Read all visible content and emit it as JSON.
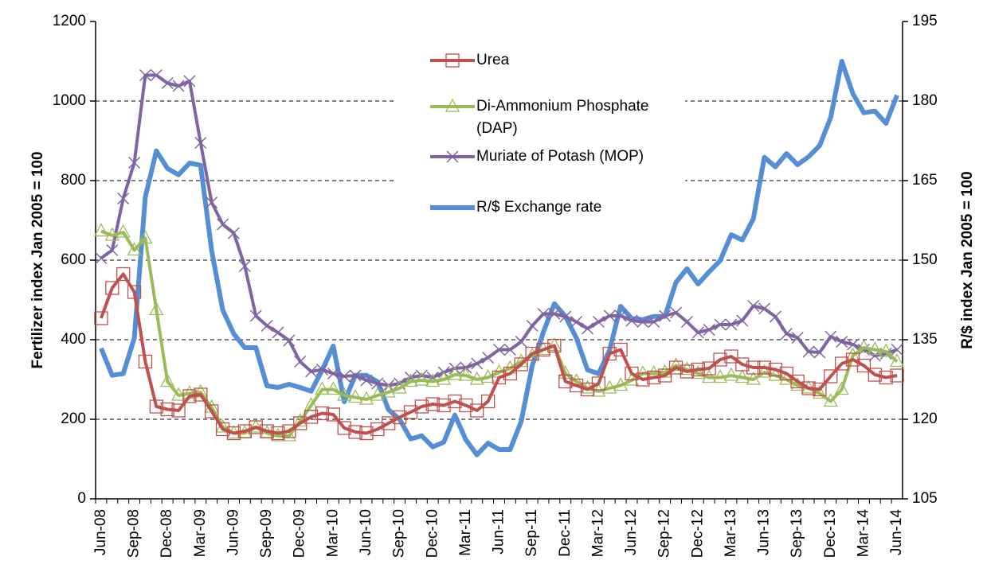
{
  "chart_data": {
    "type": "line",
    "categories": [
      "Jun-08",
      null,
      null,
      "Sep-08",
      null,
      null,
      "Dec-08",
      null,
      null,
      "Mar-09",
      null,
      null,
      "Jun-09",
      null,
      null,
      "Sep-09",
      null,
      null,
      "Dec-09",
      null,
      null,
      "Mar-10",
      null,
      null,
      "Jun-10",
      null,
      null,
      "Sep-10",
      null,
      null,
      "Dec-10",
      null,
      null,
      "Mar-11",
      null,
      null,
      "Jun-11",
      null,
      null,
      "Sep-11",
      null,
      null,
      "Dec-11",
      null,
      null,
      "Mar-12",
      null,
      null,
      "Jun-12",
      null,
      null,
      "Sep-12",
      null,
      null,
      "Dec-12",
      null,
      null,
      "Mar-13",
      null,
      null,
      "Jun-13",
      null,
      null,
      "Sep-13",
      null,
      null,
      "Dec-13",
      null,
      null,
      "Mar-14",
      null,
      null,
      "Jun-14"
    ],
    "series": [
      {
        "name": "Urea",
        "color": "#c0504d",
        "marker": "square",
        "values": [
          454,
          530,
          565,
          520,
          345,
          232,
          225,
          222,
          258,
          262,
          220,
          175,
          165,
          170,
          180,
          170,
          165,
          170,
          190,
          206,
          215,
          212,
          178,
          168,
          165,
          175,
          190,
          205,
          218,
          232,
          238,
          235,
          245,
          235,
          222,
          245,
          305,
          315,
          338,
          365,
          375,
          385,
          295,
          285,
          275,
          290,
          365,
          375,
          315,
          300,
          305,
          310,
          330,
          320,
          325,
          328,
          350,
          358,
          338,
          330,
          330,
          325,
          315,
          295,
          278,
          275,
          308,
          340,
          350,
          335,
          312,
          305,
          310
        ]
      },
      {
        "name": "Di-Ammonium Phosphate (DAP)",
        "color": "#9bbb59",
        "marker": "triangle",
        "values": [
          673,
          662,
          670,
          625,
          655,
          475,
          295,
          260,
          265,
          268,
          230,
          180,
          165,
          165,
          180,
          165,
          158,
          158,
          195,
          235,
          275,
          275,
          260,
          255,
          250,
          260,
          268,
          278,
          295,
          298,
          295,
          300,
          312,
          310,
          300,
          305,
          318,
          328,
          345,
          360,
          375,
          385,
          315,
          295,
          278,
          270,
          278,
          285,
          298,
          315,
          315,
          318,
          335,
          325,
          315,
          305,
          305,
          310,
          305,
          300,
          318,
          310,
          300,
          285,
          278,
          265,
          245,
          275,
          360,
          380,
          375,
          370,
          345
        ]
      },
      {
        "name": "Muriate of Potash (MOP)",
        "color": "#8064a2",
        "marker": "x",
        "values": [
          605,
          625,
          755,
          845,
          1065,
          1065,
          1045,
          1038,
          1050,
          895,
          745,
          690,
          668,
          585,
          460,
          435,
          418,
          398,
          345,
          320,
          325,
          315,
          308,
          310,
          298,
          290,
          285,
          290,
          305,
          310,
          305,
          318,
          328,
          330,
          340,
          355,
          375,
          375,
          395,
          435,
          465,
          465,
          458,
          445,
          428,
          445,
          460,
          460,
          448,
          445,
          445,
          460,
          468,
          445,
          418,
          425,
          438,
          438,
          448,
          485,
          478,
          458,
          415,
          405,
          370,
          368,
          408,
          395,
          388,
          375,
          360,
          365,
          375
        ]
      },
      {
        "name": "R/$ Exchange rate",
        "color": "#558ed5",
        "axis": "y2",
        "values": [
          133.4,
          128.3,
          128.6,
          135.3,
          161.9,
          170.6,
          167.3,
          166.1,
          168.3,
          167.9,
          151.8,
          140.6,
          136.1,
          133.5,
          133.5,
          126.3,
          126.0,
          126.6,
          126.0,
          125.3,
          129.3,
          133.8,
          123.3,
          128.3,
          128.3,
          127.1,
          121.8,
          120.0,
          116.3,
          116.9,
          114.8,
          115.7,
          120.8,
          116.1,
          113.3,
          115.5,
          114.3,
          114.3,
          119.6,
          130.1,
          136.4,
          141.8,
          139.4,
          135.3,
          129.3,
          128.6,
          133.1,
          141.3,
          139.0,
          138.8,
          139.4,
          139.4,
          145.8,
          148.4,
          145.5,
          147.8,
          149.9,
          154.8,
          153.8,
          157.8,
          169.4,
          167.6,
          170.1,
          168.0,
          169.5,
          171.6,
          176.9,
          187.5,
          181.4,
          177.8,
          178.1,
          175.8,
          181.1
        ]
      }
    ],
    "ylabel": "Fertilizer index Jan 2005 = 100",
    "y2label": "R/$ index Jan 2005 = 100",
    "ylim": [
      0,
      1200
    ],
    "yticks": [
      0,
      200,
      400,
      600,
      800,
      1000,
      1200
    ],
    "y2lim": [
      105,
      195
    ],
    "y2ticks": [
      105,
      120,
      135,
      150,
      165,
      180,
      195
    ],
    "grid": true,
    "legend": "upper center"
  }
}
